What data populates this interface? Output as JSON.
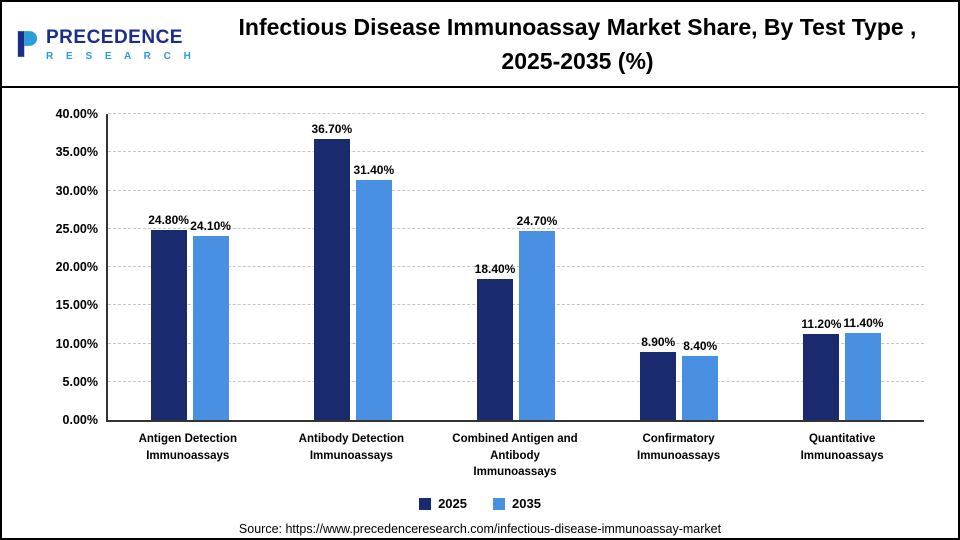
{
  "header": {
    "logo_line1": "PRECEDENCE",
    "logo_line2": "R E S E A R C H",
    "title_line1": "Infectious Disease Immunoassay Market Share, By Test Type ,",
    "title_line2": "2025-2035 (%)"
  },
  "chart_data": {
    "type": "bar",
    "title": "Infectious Disease Immunoassay Market Share, By Test Type , 2025-2035 (%)",
    "categories": [
      "Antigen Detection Immunoassays",
      "Antibody Detection Immunoassays",
      "Combined Antigen and Antibody Immunoassays",
      "Confirmatory Immunoassays",
      "Quantitative Immunoassays"
    ],
    "series": [
      {
        "name": "2025",
        "color": "#1a2a6e",
        "values": [
          24.8,
          36.7,
          18.4,
          8.9,
          11.2
        ]
      },
      {
        "name": "2035",
        "color": "#4a90e2",
        "values": [
          24.1,
          31.4,
          24.7,
          8.4,
          11.4
        ]
      }
    ],
    "xlabel": "",
    "ylabel": "",
    "ylim": [
      0,
      40
    ],
    "ytick_step": 5,
    "ytick_format": "0.00%",
    "value_labels": true,
    "grid": true,
    "legend_position": "bottom"
  },
  "footer": {
    "source": "Source: https://www.precedenceresearch.com/infectious-disease-immunoassay-market"
  }
}
